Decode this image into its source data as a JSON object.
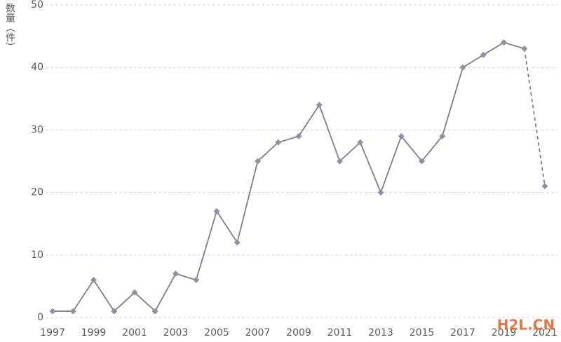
{
  "chart_data": {
    "type": "line",
    "y_label": "数量（件）",
    "x": [
      1997,
      1998,
      1999,
      2000,
      2001,
      2002,
      2003,
      2004,
      2005,
      2006,
      2007,
      2008,
      2009,
      2010,
      2011,
      2012,
      2013,
      2014,
      2015,
      2016,
      2017,
      2018,
      2019,
      2020,
      2021
    ],
    "series": [
      {
        "color": "#7f7f7f",
        "marker_color": "#8a93a6",
        "values": [
          1,
          1,
          6,
          1,
          4,
          1,
          7,
          6,
          17,
          12,
          25,
          28,
          29,
          34,
          25,
          28,
          20,
          29,
          25,
          29,
          40,
          42,
          44,
          43,
          21
        ]
      }
    ],
    "dashed_last_segment": true,
    "xlim": [
      1997,
      2021
    ],
    "xticks": [
      1997,
      1999,
      2001,
      2003,
      2005,
      2007,
      2009,
      2011,
      2013,
      2015,
      2017,
      2019,
      2021
    ],
    "ylim": [
      0,
      50
    ],
    "yticks": [
      0,
      10,
      20,
      30,
      40,
      50
    ],
    "grid": true,
    "watermark": "H2L.CN"
  }
}
